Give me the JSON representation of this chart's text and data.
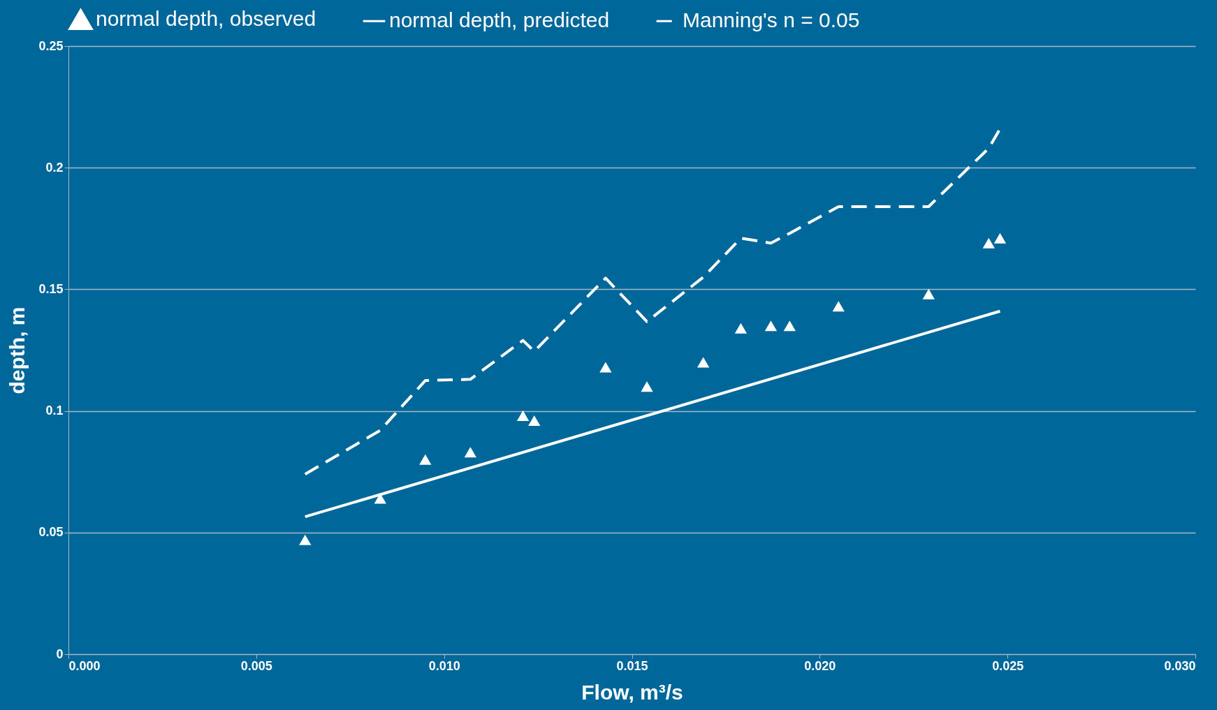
{
  "chart_data": {
    "type": "scatter",
    "xlabel": "Flow, m³/s",
    "ylabel": "depth, m",
    "xlim": [
      0,
      0.03
    ],
    "xticks": [
      {
        "value": 0,
        "label": "0.000"
      },
      {
        "value": 0.005,
        "label": "0.005"
      },
      {
        "value": 0.01,
        "label": "0.010"
      },
      {
        "value": 0.015,
        "label": "0.015"
      },
      {
        "value": 0.02,
        "label": "0.020"
      },
      {
        "value": 0.025,
        "label": "0.025"
      },
      {
        "value": 0.03,
        "label": "0.030"
      }
    ],
    "ylim": [
      0,
      0.25
    ],
    "yticks": [
      0,
      0.05,
      0.1,
      0.15,
      0.2,
      0.25
    ],
    "grid": "y",
    "legend": "top",
    "series": [
      {
        "name": "normal depth, observed",
        "marker": "triangle",
        "color": "#ffffff",
        "x": [
          0.0063,
          0.0083,
          0.0095,
          0.0107,
          0.0121,
          0.0124,
          0.0143,
          0.0154,
          0.0169,
          0.0179,
          0.0187,
          0.0192,
          0.0205,
          0.0229,
          0.0245,
          0.0248
        ],
        "values": [
          0.047,
          0.064,
          0.08,
          0.083,
          0.098,
          0.096,
          0.118,
          0.11,
          0.12,
          0.134,
          0.135,
          0.135,
          0.143,
          0.148,
          0.169,
          0.171
        ]
      },
      {
        "name": "normal depth, predicted",
        "type": "line",
        "line_style": "solid",
        "color": "#ffffff",
        "x": [
          0.0063,
          0.0248
        ],
        "values": [
          0.0565,
          0.141
        ]
      },
      {
        "name": "Manning's n = 0.05",
        "type": "line",
        "line_style": "dashed",
        "color": "#ffffff",
        "x": [
          0.0063,
          0.0083,
          0.0095,
          0.0107,
          0.0121,
          0.0124,
          0.0143,
          0.0154,
          0.0169,
          0.0179,
          0.0187,
          0.0192,
          0.0205,
          0.0229,
          0.0245,
          0.0248
        ],
        "values": [
          0.074,
          0.092,
          0.1125,
          0.113,
          0.129,
          0.1245,
          0.1546,
          0.1367,
          0.155,
          0.171,
          0.169,
          0.173,
          0.184,
          0.184,
          0.208,
          0.216
        ]
      }
    ]
  }
}
